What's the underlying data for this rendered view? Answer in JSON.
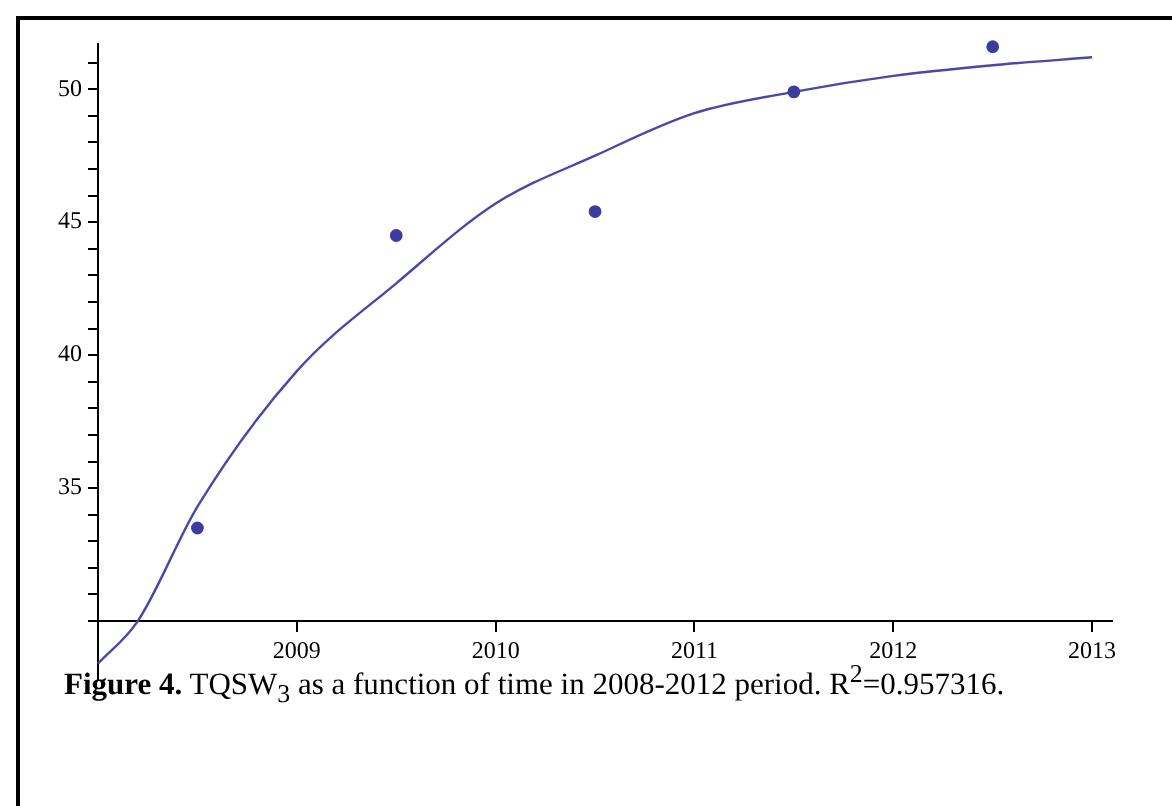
{
  "chart_data": {
    "type": "scatter",
    "annotations": [
      "Figure 4.",
      "TQSW$_{3}$ as a function of time in 2008-2012 period. R$^{2}$=0.957316."
    ],
    "xlim": [
      2008,
      2013.1
    ],
    "ylim": [
      27.8,
      51.7
    ],
    "xticks": [
      2009,
      2010,
      2011,
      2012,
      2013
    ],
    "yticks": [
      {
        "value": 30,
        "label": null
      },
      {
        "value": 31,
        "label": null
      },
      {
        "value": 32,
        "label": null
      },
      {
        "value": 33,
        "label": null
      },
      {
        "value": 34,
        "label": null
      },
      35,
      {
        "value": 36,
        "label": null
      },
      {
        "value": 37,
        "label": null
      },
      {
        "value": 38,
        "label": null
      },
      {
        "value": 39,
        "label": null
      },
      40,
      {
        "value": 41,
        "label": null
      },
      {
        "value": 42,
        "label": null
      },
      {
        "value": 43,
        "label": null
      },
      {
        "value": 44,
        "label": null
      },
      45,
      {
        "value": 46,
        "label": null
      },
      {
        "value": 47,
        "label": null
      },
      {
        "value": 48,
        "label": null
      },
      {
        "value": 49,
        "label": null
      },
      50,
      {
        "value": 51,
        "label": null
      }
    ],
    "grid": false,
    "legend": false,
    "marker": "circle",
    "series": [
      {
        "type": "scatter",
        "color": "#3c3ca0",
        "x": [
          2008.5,
          2009.5,
          2010.5,
          2011.5,
          2012.5
        ],
        "values": [
          33.5,
          44.5,
          45.4,
          49.9,
          51.6
        ]
      },
      {
        "type": "line",
        "color": "#4848a8",
        "marker": "none",
        "line_style": "solid",
        "x": [
          2008,
          2008.2,
          2008.5,
          2009,
          2009.5,
          2010,
          2010.5,
          2011,
          2011.5,
          2012,
          2012.5,
          2013
        ],
        "values": [
          28.4,
          30,
          34.3,
          39.4,
          42.7,
          45.7,
          47.5,
          49.1,
          49.9,
          50.5,
          50.9,
          51.2
        ]
      }
    ]
  }
}
